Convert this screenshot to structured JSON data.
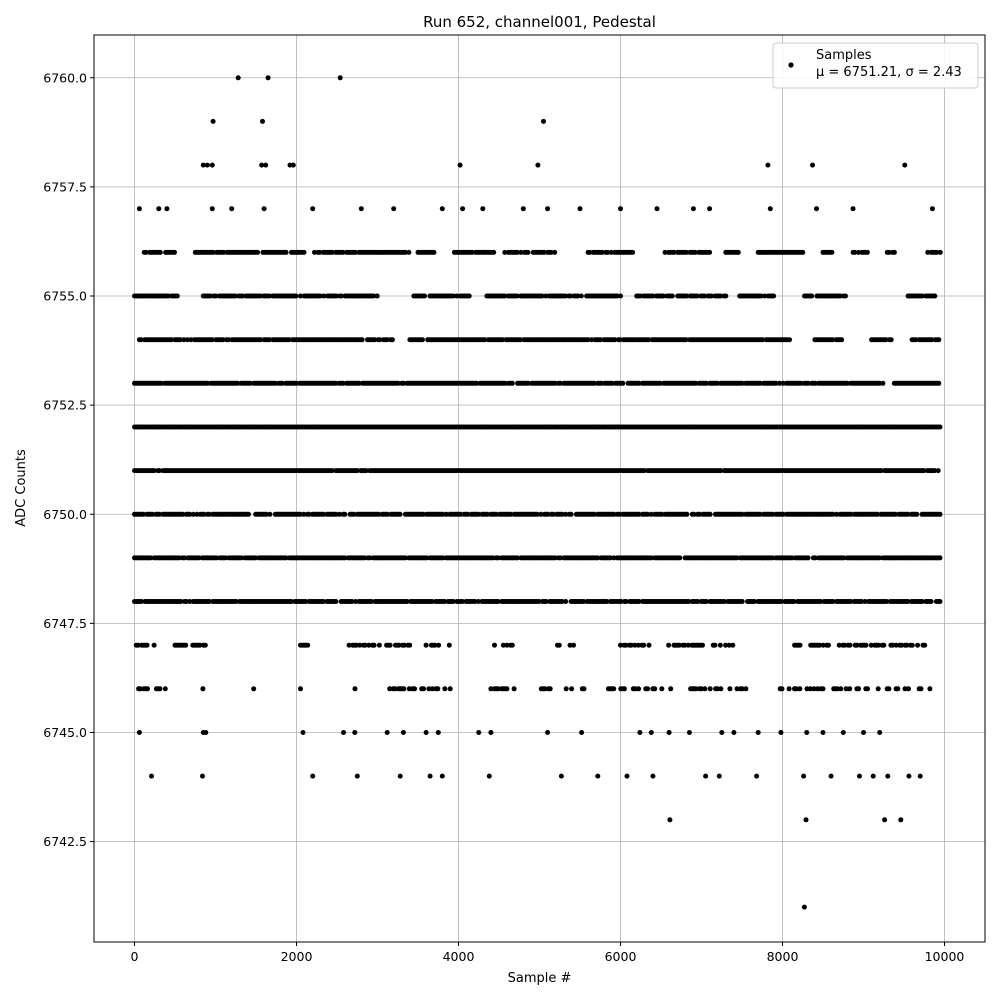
{
  "chart_data": {
    "type": "scatter",
    "title": "Run 652, channel001, Pedestal",
    "xlabel": "Sample #",
    "ylabel": "ADC Counts",
    "xlim": [
      -500,
      10500
    ],
    "ylim": [
      6740.2,
      6760.98
    ],
    "xticks": [
      0,
      2000,
      4000,
      6000,
      8000,
      10000
    ],
    "xtick_labels": [
      "0",
      "2000",
      "4000",
      "6000",
      "8000",
      "10000"
    ],
    "yticks": [
      6742.5,
      6745.0,
      6747.5,
      6750.0,
      6752.5,
      6755.0,
      6757.5,
      6760.0
    ],
    "ytick_labels": [
      "6742.5",
      "6745.0",
      "6747.5",
      "6750.0",
      "6752.5",
      "6755.0",
      "6757.5",
      "6760.0"
    ],
    "grid": true,
    "legend_position": "top-right",
    "marker_color": "#000000",
    "series": [
      {
        "name": "Samples",
        "stats_label": "μ = 6751.21, σ = 2.43",
        "points": [
          [
            1280,
            6760
          ],
          [
            1650,
            6760
          ],
          [
            2540,
            6760
          ],
          [
            970,
            6759
          ],
          [
            1580,
            6759
          ],
          [
            5050,
            6759
          ],
          [
            850,
            6758
          ],
          [
            900,
            6758
          ],
          [
            960,
            6758
          ],
          [
            1570,
            6758
          ],
          [
            1620,
            6758
          ],
          [
            1920,
            6758
          ],
          [
            1960,
            6758
          ],
          [
            4020,
            6758
          ],
          [
            4980,
            6758
          ],
          [
            7820,
            6758
          ],
          [
            8370,
            6758
          ],
          [
            9510,
            6758
          ],
          [
            60,
            6757
          ],
          [
            300,
            6757
          ],
          [
            400,
            6757
          ],
          [
            960,
            6757
          ],
          [
            1200,
            6757
          ],
          [
            1600,
            6757
          ],
          [
            2200,
            6757
          ],
          [
            2800,
            6757
          ],
          [
            3200,
            6757
          ],
          [
            3800,
            6757
          ],
          [
            4050,
            6757
          ],
          [
            4300,
            6757
          ],
          [
            4800,
            6757
          ],
          [
            5100,
            6757
          ],
          [
            5500,
            6757
          ],
          [
            6000,
            6757
          ],
          [
            6450,
            6757
          ],
          [
            6900,
            6757
          ],
          [
            7100,
            6757
          ],
          [
            7850,
            6757
          ],
          [
            8420,
            6757
          ],
          [
            8870,
            6757
          ],
          [
            9850,
            6757
          ],
          [
            6610,
            6743
          ],
          [
            8290,
            6743
          ],
          [
            9260,
            6743
          ],
          [
            9460,
            6743
          ],
          [
            8270,
            6741
          ],
          [
            210,
            6744
          ],
          [
            840,
            6744
          ],
          [
            2200,
            6744
          ],
          [
            2750,
            6744
          ],
          [
            3280,
            6744
          ],
          [
            3650,
            6744
          ],
          [
            3800,
            6744
          ],
          [
            4380,
            6744
          ],
          [
            5270,
            6744
          ],
          [
            5720,
            6744
          ],
          [
            6080,
            6744
          ],
          [
            6400,
            6744
          ],
          [
            7050,
            6744
          ],
          [
            7220,
            6744
          ],
          [
            7680,
            6744
          ],
          [
            8260,
            6744
          ],
          [
            8600,
            6744
          ],
          [
            8950,
            6744
          ],
          [
            9120,
            6744
          ],
          [
            9300,
            6744
          ],
          [
            9560,
            6744
          ],
          [
            9700,
            6744
          ],
          [
            60,
            6745
          ],
          [
            850,
            6745
          ],
          [
            880,
            6745
          ],
          [
            2080,
            6745
          ],
          [
            2580,
            6745
          ],
          [
            2720,
            6745
          ],
          [
            3120,
            6745
          ],
          [
            3320,
            6745
          ],
          [
            3600,
            6745
          ],
          [
            3750,
            6745
          ],
          [
            4250,
            6745
          ],
          [
            4400,
            6745
          ],
          [
            5100,
            6745
          ],
          [
            5520,
            6745
          ],
          [
            6240,
            6745
          ],
          [
            6380,
            6745
          ],
          [
            6600,
            6745
          ],
          [
            6850,
            6745
          ],
          [
            7250,
            6745
          ],
          [
            7400,
            6745
          ],
          [
            7700,
            6745
          ],
          [
            7980,
            6745
          ],
          [
            8300,
            6745
          ],
          [
            8500,
            6745
          ],
          [
            8750,
            6745
          ],
          [
            9000,
            6745
          ],
          [
            9200,
            6745
          ]
        ]
      }
    ],
    "row_segments": [
      {
        "y": 6756,
        "ranges": [
          [
            120,
            500
          ],
          [
            750,
            2100
          ],
          [
            2200,
            3400
          ],
          [
            3500,
            3700
          ],
          [
            3950,
            4450
          ],
          [
            4550,
            5200
          ],
          [
            5600,
            6150
          ],
          [
            6550,
            7100
          ],
          [
            7300,
            7500
          ],
          [
            7700,
            8250
          ],
          [
            8500,
            8650
          ],
          [
            8850,
            9050
          ],
          [
            9250,
            9400
          ],
          [
            9750,
            9950
          ]
        ],
        "density": 0.85
      },
      {
        "y": 6755,
        "ranges": [
          [
            0,
            550
          ],
          [
            850,
            2000
          ],
          [
            2050,
            3000
          ],
          [
            3450,
            4150
          ],
          [
            4350,
            6000
          ],
          [
            6200,
            7300
          ],
          [
            7450,
            7900
          ],
          [
            8250,
            8800
          ],
          [
            9550,
            9900
          ]
        ],
        "density": 0.85
      },
      {
        "y": 6754,
        "ranges": [
          [
            60,
            3200
          ],
          [
            3400,
            8100
          ],
          [
            8400,
            8750
          ],
          [
            9100,
            9350
          ],
          [
            9600,
            9950
          ]
        ],
        "density": 0.9
      },
      {
        "y": 6753,
        "ranges": [
          [
            0,
            9250
          ],
          [
            9380,
            9950
          ]
        ],
        "density": 0.95
      },
      {
        "y": 6752,
        "ranges": [
          [
            0,
            9950
          ]
        ],
        "density": 1.0
      },
      {
        "y": 6751,
        "ranges": [
          [
            0,
            9950
          ]
        ],
        "density": 0.97
      },
      {
        "y": 6750,
        "ranges": [
          [
            0,
            9950
          ]
        ],
        "density": 0.85
      },
      {
        "y": 6749,
        "ranges": [
          [
            0,
            9950
          ]
        ],
        "density": 0.93
      },
      {
        "y": 6748,
        "ranges": [
          [
            0,
            9950
          ]
        ],
        "density": 0.88
      },
      {
        "y": 6747,
        "ranges": [
          [
            0,
            250
          ],
          [
            500,
            900
          ],
          [
            2050,
            2150
          ],
          [
            2650,
            3400
          ],
          [
            3600,
            3900
          ],
          [
            4400,
            4700
          ],
          [
            5200,
            5450
          ],
          [
            6000,
            6400
          ],
          [
            6550,
            7400
          ],
          [
            8150,
            9800
          ]
        ],
        "density": 0.55
      },
      {
        "y": 6746,
        "ranges": [
          [
            50,
            400
          ],
          [
            800,
            850
          ],
          [
            1450,
            1500
          ],
          [
            2050,
            2100
          ],
          [
            2700,
            2750
          ],
          [
            3150,
            3900
          ],
          [
            4400,
            4700
          ],
          [
            5000,
            5550
          ],
          [
            5850,
            6650
          ],
          [
            6800,
            7250
          ],
          [
            7350,
            7700
          ],
          [
            7950,
            9850
          ]
        ],
        "density": 0.45
      }
    ]
  }
}
